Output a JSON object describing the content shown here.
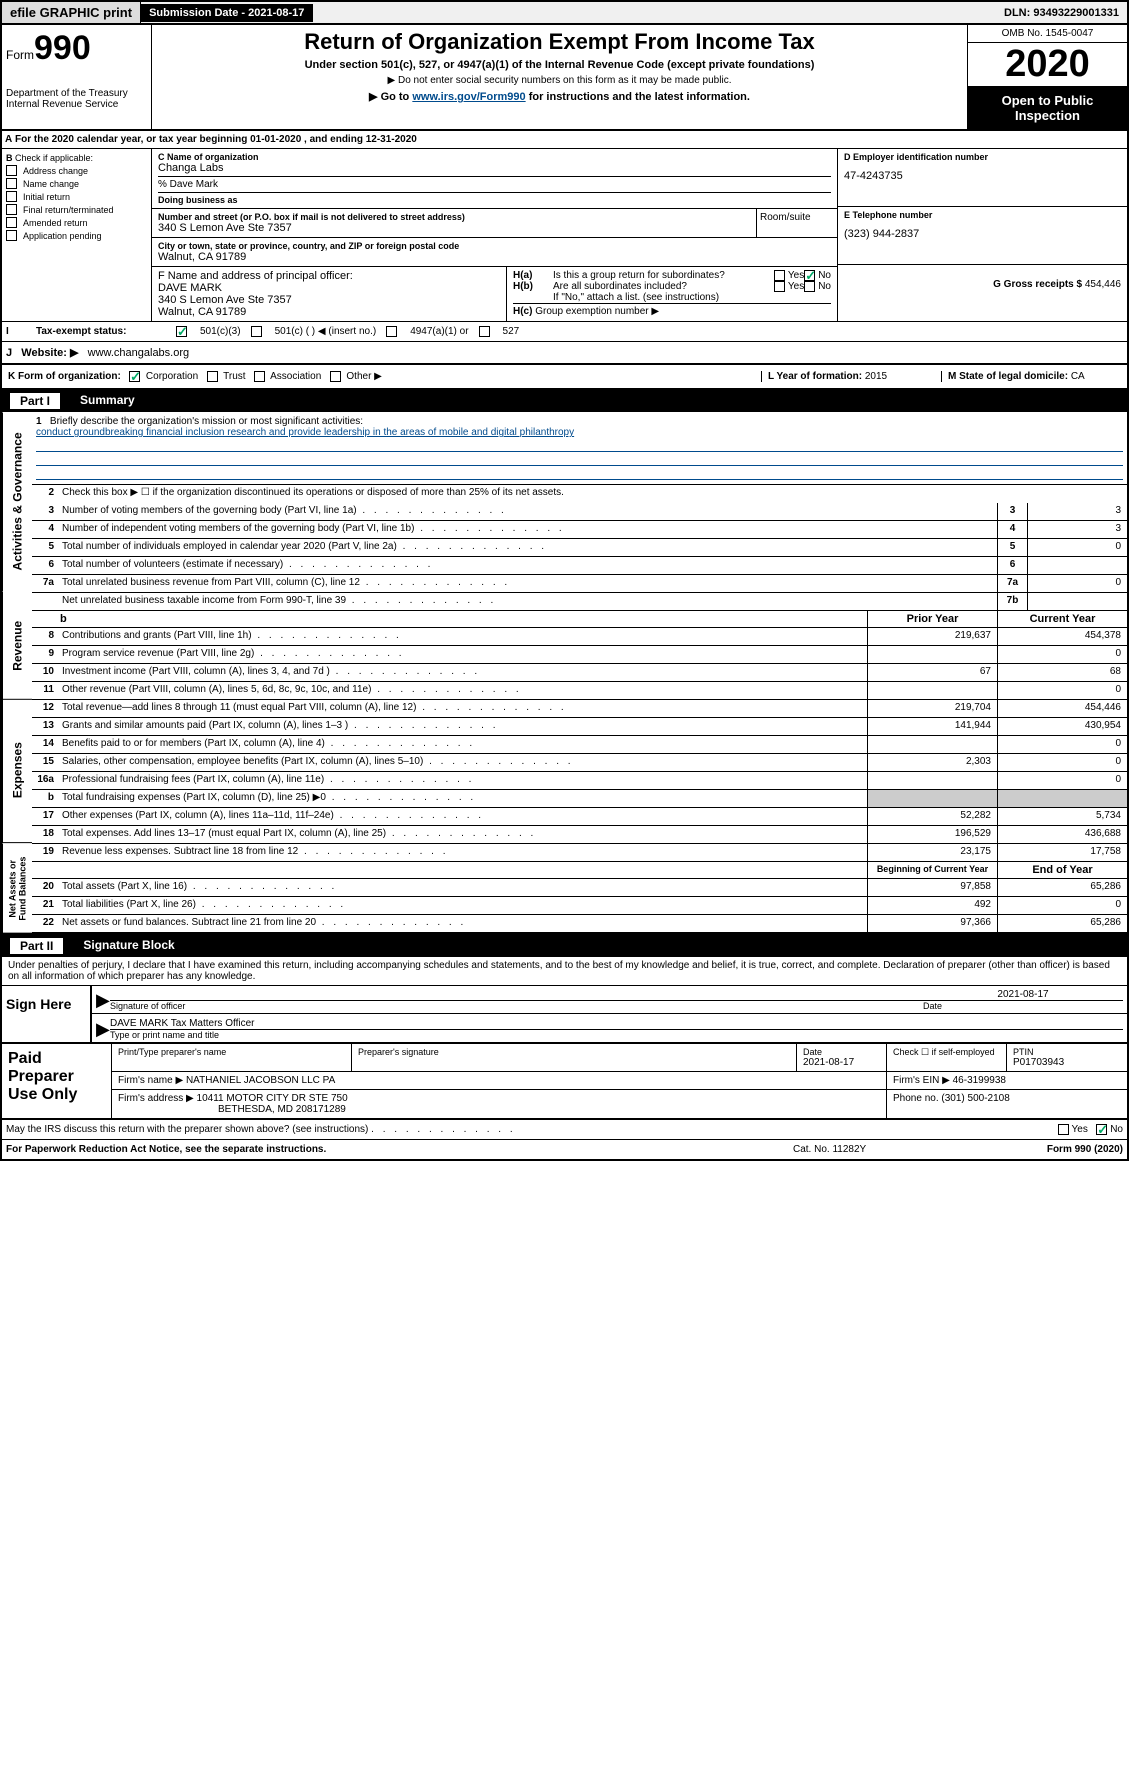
{
  "top": {
    "efile": "efile GRAPHIC print",
    "subDate": "Submission Date - 2021-08-17",
    "dln": "DLN: 93493229001331"
  },
  "header": {
    "formPrefix": "Form",
    "formNum": "990",
    "dept": "Department of the Treasury",
    "irs": "Internal Revenue Service",
    "title": "Return of Organization Exempt From Income Tax",
    "subtitle": "Under section 501(c), 527, or 4947(a)(1) of the Internal Revenue Code (except private foundations)",
    "note1": "▶ Do not enter social security numbers on this form as it may be made public.",
    "note2Pre": "▶ Go to ",
    "note2Link": "www.irs.gov/Form990",
    "note2Post": " for instructions and the latest information.",
    "omb": "OMB No. 1545-0047",
    "year": "2020",
    "openPublic": "Open to Public Inspection"
  },
  "secA": {
    "taxYear": "For the 2020 calendar year, or tax year beginning 01-01-2020    , and ending 12-31-2020",
    "checkLabel": "Check if applicable:",
    "checks": [
      "Address change",
      "Name change",
      "Initial return",
      "Final return/terminated",
      "Amended return",
      "Application pending"
    ],
    "cNameLabel": "C Name of organization",
    "orgName": "Changa Labs",
    "careOf": "% Dave Mark",
    "dbaLabel": "Doing business as",
    "addrLabel": "Number and street (or P.O. box if mail is not delivered to street address)",
    "roomLabel": "Room/suite",
    "addr": "340 S Lemon Ave Ste 7357",
    "cityLabel": "City or town, state or province, country, and ZIP or foreign postal code",
    "city": "Walnut, CA  91789",
    "dLabel": "D Employer identification number",
    "ein": "47-4243735",
    "eLabel": "E Telephone number",
    "phone": "(323) 944-2837",
    "gLabel": "G Gross receipts $",
    "gross": "454,446",
    "fLabel": "F  Name and address of principal officer:",
    "officer": "DAVE MARK",
    "officerAddr": "340 S Lemon Ave Ste 7357",
    "officerCity": "Walnut, CA  91789",
    "haLabel": "Is this a group return for subordinates?",
    "hbLabel": "Are all subordinates included?",
    "hbNote": "If \"No,\" attach a list. (see instructions)",
    "hcLabel": "Group exemption number ▶",
    "taxExempt": "Tax-exempt status:",
    "s501c3": "501(c)(3)",
    "s501c": "501(c) (   ) ◀ (insert no.)",
    "s4947": "4947(a)(1) or",
    "s527": "527",
    "websiteLabel": "Website: ▶",
    "website": "www.changalabs.org",
    "kLabel": "K Form of organization:",
    "kCorp": "Corporation",
    "kTrust": "Trust",
    "kAssoc": "Association",
    "kOther": "Other ▶",
    "lLabel": "L Year of formation:",
    "lYear": "2015",
    "mLabel": "M State of legal domicile:",
    "mState": "CA"
  },
  "partI": {
    "title": "Part I",
    "name": "Summary",
    "q1": "Briefly describe the organization's mission or most significant activities:",
    "q1ans": "conduct groundbreaking financial inclusion research and provide leadership in the areas of mobile and digital philanthropy",
    "q2": "Check this box ▶ ☐  if the organization discontinued its operations or disposed of more than 25% of its net assets.",
    "lines3_7": [
      {
        "n": "3",
        "d": "Number of voting members of the governing body (Part VI, line 1a)",
        "r": "3",
        "v": "3"
      },
      {
        "n": "4",
        "d": "Number of independent voting members of the governing body (Part VI, line 1b)",
        "r": "4",
        "v": "3"
      },
      {
        "n": "5",
        "d": "Total number of individuals employed in calendar year 2020 (Part V, line 2a)",
        "r": "5",
        "v": "0"
      },
      {
        "n": "6",
        "d": "Total number of volunteers (estimate if necessary)",
        "r": "6",
        "v": ""
      },
      {
        "n": "7a",
        "d": "Total unrelated business revenue from Part VIII, column (C), line 12",
        "r": "7a",
        "v": "0"
      },
      {
        "n": "",
        "d": "Net unrelated business taxable income from Form 990-T, line 39",
        "r": "7b",
        "v": ""
      }
    ],
    "priorHdr": "Prior Year",
    "currHdr": "Current Year",
    "revenue": [
      {
        "n": "8",
        "d": "Contributions and grants (Part VIII, line 1h)",
        "p": "219,637",
        "c": "454,378"
      },
      {
        "n": "9",
        "d": "Program service revenue (Part VIII, line 2g)",
        "p": "",
        "c": "0"
      },
      {
        "n": "10",
        "d": "Investment income (Part VIII, column (A), lines 3, 4, and 7d )",
        "p": "67",
        "c": "68"
      },
      {
        "n": "11",
        "d": "Other revenue (Part VIII, column (A), lines 5, 6d, 8c, 9c, 10c, and 11e)",
        "p": "",
        "c": "0"
      },
      {
        "n": "12",
        "d": "Total revenue—add lines 8 through 11 (must equal Part VIII, column (A), line 12)",
        "p": "219,704",
        "c": "454,446"
      }
    ],
    "expenses": [
      {
        "n": "13",
        "d": "Grants and similar amounts paid (Part IX, column (A), lines 1–3 )",
        "p": "141,944",
        "c": "430,954"
      },
      {
        "n": "14",
        "d": "Benefits paid to or for members (Part IX, column (A), line 4)",
        "p": "",
        "c": "0"
      },
      {
        "n": "15",
        "d": "Salaries, other compensation, employee benefits (Part IX, column (A), lines 5–10)",
        "p": "2,303",
        "c": "0"
      },
      {
        "n": "16a",
        "d": "Professional fundraising fees (Part IX, column (A), line 11e)",
        "p": "",
        "c": "0"
      },
      {
        "n": "b",
        "d": "Total fundraising expenses (Part IX, column (D), line 25) ▶0",
        "p": "",
        "c": "",
        "shaded": true
      },
      {
        "n": "17",
        "d": "Other expenses (Part IX, column (A), lines 11a–11d, 11f–24e)",
        "p": "52,282",
        "c": "5,734"
      },
      {
        "n": "18",
        "d": "Total expenses. Add lines 13–17 (must equal Part IX, column (A), line 25)",
        "p": "196,529",
        "c": "436,688"
      },
      {
        "n": "19",
        "d": "Revenue less expenses. Subtract line 18 from line 12",
        "p": "23,175",
        "c": "17,758"
      }
    ],
    "begHdr": "Beginning of Current Year",
    "endHdr": "End of Year",
    "netassets": [
      {
        "n": "20",
        "d": "Total assets (Part X, line 16)",
        "p": "97,858",
        "c": "65,286"
      },
      {
        "n": "21",
        "d": "Total liabilities (Part X, line 26)",
        "p": "492",
        "c": "0"
      },
      {
        "n": "22",
        "d": "Net assets or fund balances. Subtract line 21 from line 20",
        "p": "97,366",
        "c": "65,286"
      }
    ],
    "tabs": {
      "gov": "Activities & Governance",
      "rev": "Revenue",
      "exp": "Expenses",
      "net": "Net Assets or Fund Balances"
    }
  },
  "partII": {
    "title": "Part II",
    "name": "Signature Block",
    "perjury": "Under penalties of perjury, I declare that I have examined this return, including accompanying schedules and statements, and to the best of my knowledge and belief, it is true, correct, and complete. Declaration of preparer (other than officer) is based on all information of which preparer has any knowledge.",
    "signHere": "Sign Here",
    "sigOfficer": "Signature of officer",
    "sigDate": "2021-08-17",
    "dateLabel": "Date",
    "officerName": "DAVE MARK Tax Matters Officer",
    "typeLabel": "Type or print name and title",
    "paidPrep": "Paid Preparer Use Only",
    "prepNameLabel": "Print/Type preparer's name",
    "prepSigLabel": "Preparer's signature",
    "prepDate": "2021-08-17",
    "selfEmp": "Check ☐ if self-employed",
    "ptinLabel": "PTIN",
    "ptin": "P01703943",
    "firmNameLabel": "Firm's name    ▶",
    "firmName": "NATHANIEL JACOBSON LLC PA",
    "firmEinLabel": "Firm's EIN ▶",
    "firmEin": "46-3199938",
    "firmAddrLabel": "Firm's address ▶",
    "firmAddr": "10411 MOTOR CITY DR STE 750",
    "firmCity": "BETHESDA, MD  208171289",
    "firmPhoneLabel": "Phone no.",
    "firmPhone": "(301) 500-2108",
    "discuss": "May the IRS discuss this return with the preparer shown above? (see instructions)",
    "paperwork": "For Paperwork Reduction Act Notice, see the separate instructions.",
    "catNo": "Cat. No. 11282Y",
    "formFooter": "Form 990 (2020)"
  }
}
